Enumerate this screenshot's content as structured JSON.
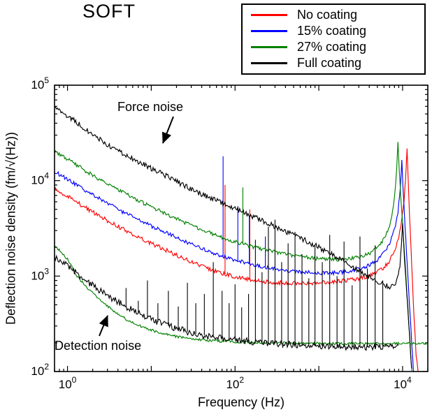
{
  "title": "SOFT",
  "annotations": {
    "force": "Force noise",
    "detection": "Detection noise"
  },
  "legend": {
    "position": "top-right",
    "items": [
      {
        "label": "No coating",
        "color": "#ff0000"
      },
      {
        "label": "15% coating",
        "color": "#0000ff"
      },
      {
        "label": "27% coating",
        "color": "#008000"
      },
      {
        "label": "Full coating",
        "color": "#000000"
      }
    ]
  },
  "chart_data": {
    "type": "line",
    "title": "SOFT",
    "xlabel": "Frequency (Hz)",
    "ylabel": "Deflection noise density (fm/√(Hz))",
    "xscale": "log",
    "yscale": "log",
    "xlim": [
      0.7,
      20000
    ],
    "ylim": [
      100,
      100000
    ],
    "grid": false,
    "x_tick_labels": [
      {
        "value": 1,
        "base": "10",
        "exp": "0"
      },
      {
        "value": 100,
        "base": "10",
        "exp": "2"
      },
      {
        "value": 10000,
        "base": "10",
        "exp": "4"
      }
    ],
    "y_tick_labels": [
      {
        "value": 100,
        "base": "10",
        "exp": "2"
      },
      {
        "value": 1000,
        "base": "10",
        "exp": "3"
      },
      {
        "value": 10000,
        "base": "10",
        "exp": "4"
      },
      {
        "value": 100000,
        "base": "10",
        "exp": "5"
      }
    ],
    "series": [
      {
        "name": "No coating",
        "color": "#ff0000",
        "noise": 0.022,
        "points": [
          [
            0.7,
            8200
          ],
          [
            1,
            6800
          ],
          [
            2,
            4700
          ],
          [
            3,
            3800
          ],
          [
            5,
            3000
          ],
          [
            7,
            2550
          ],
          [
            10,
            2200
          ],
          [
            15,
            1870
          ],
          [
            20,
            1660
          ],
          [
            30,
            1410
          ],
          [
            50,
            1180
          ],
          [
            70,
            1070
          ],
          [
            100,
            985
          ],
          [
            150,
            920
          ],
          [
            200,
            885
          ],
          [
            300,
            860
          ],
          [
            500,
            845
          ],
          [
            700,
            845
          ],
          [
            1000,
            855
          ],
          [
            1500,
            870
          ],
          [
            2000,
            895
          ],
          [
            3000,
            945
          ],
          [
            4000,
            1010
          ],
          [
            5000,
            1100
          ],
          [
            6000,
            1230
          ],
          [
            7000,
            1450
          ],
          [
            8000,
            1850
          ],
          [
            9000,
            2600
          ],
          [
            9800,
            3900
          ],
          [
            10400,
            6000
          ],
          [
            10900,
            11000
          ],
          [
            11300,
            21000
          ],
          [
            11700,
            10000
          ],
          [
            12100,
            4500
          ],
          [
            12600,
            2000
          ],
          [
            13100,
            900
          ],
          [
            13700,
            380
          ],
          [
            14500,
            150
          ],
          [
            15300,
            100
          ]
        ],
        "spikes": [
          [
            76,
            9000
          ],
          [
            150,
            5000
          ]
        ]
      },
      {
        "name": "15% coating",
        "color": "#0000ff",
        "noise": 0.02,
        "points": [
          [
            0.7,
            12500
          ],
          [
            1,
            10300
          ],
          [
            2,
            7100
          ],
          [
            3,
            5800
          ],
          [
            5,
            4500
          ],
          [
            7,
            3900
          ],
          [
            10,
            3350
          ],
          [
            15,
            2850
          ],
          [
            20,
            2550
          ],
          [
            30,
            2150
          ],
          [
            50,
            1800
          ],
          [
            70,
            1620
          ],
          [
            100,
            1480
          ],
          [
            150,
            1350
          ],
          [
            200,
            1270
          ],
          [
            300,
            1190
          ],
          [
            500,
            1120
          ],
          [
            700,
            1090
          ],
          [
            1000,
            1080
          ],
          [
            1500,
            1080
          ],
          [
            2000,
            1100
          ],
          [
            3000,
            1180
          ],
          [
            4000,
            1300
          ],
          [
            5000,
            1480
          ],
          [
            6000,
            1750
          ],
          [
            7000,
            2200
          ],
          [
            8000,
            3100
          ],
          [
            8800,
            4700
          ],
          [
            9400,
            8500
          ],
          [
            9800,
            17000
          ],
          [
            10100,
            9000
          ],
          [
            10700,
            3300
          ],
          [
            11400,
            1300
          ],
          [
            12100,
            480
          ],
          [
            12900,
            190
          ],
          [
            13500,
            100
          ]
        ],
        "spikes": [
          [
            72,
            18000
          ],
          [
            108,
            5400
          ],
          [
            148,
            4200
          ],
          [
            230,
            2600
          ]
        ]
      },
      {
        "name": "27% coating",
        "color": "#008000",
        "noise": 0.02,
        "points": [
          [
            0.7,
            20500
          ],
          [
            1,
            16800
          ],
          [
            2,
            11300
          ],
          [
            3,
            9200
          ],
          [
            5,
            7200
          ],
          [
            7,
            6200
          ],
          [
            10,
            5300
          ],
          [
            15,
            4500
          ],
          [
            20,
            4000
          ],
          [
            30,
            3400
          ],
          [
            50,
            2850
          ],
          [
            70,
            2550
          ],
          [
            100,
            2300
          ],
          [
            150,
            2060
          ],
          [
            200,
            1930
          ],
          [
            300,
            1780
          ],
          [
            500,
            1640
          ],
          [
            700,
            1570
          ],
          [
            1000,
            1520
          ],
          [
            1500,
            1490
          ],
          [
            2000,
            1500
          ],
          [
            3000,
            1570
          ],
          [
            4000,
            1720
          ],
          [
            5000,
            1980
          ],
          [
            6000,
            2450
          ],
          [
            6800,
            3100
          ],
          [
            7400,
            4200
          ],
          [
            8000,
            6800
          ],
          [
            8500,
            13000
          ],
          [
            8800,
            26000
          ],
          [
            9100,
            14000
          ],
          [
            9600,
            6000
          ],
          [
            10200,
            2600
          ],
          [
            10900,
            1050
          ],
          [
            11600,
            420
          ],
          [
            12300,
            180
          ],
          [
            12900,
            100
          ]
        ],
        "spikes": [
          [
            124,
            8500
          ]
        ]
      },
      {
        "name": "Full coating",
        "color": "#000000",
        "noise": 0.028,
        "points": [
          [
            0.7,
            62000
          ],
          [
            1,
            48000
          ],
          [
            2,
            30000
          ],
          [
            3,
            24000
          ],
          [
            5,
            18500
          ],
          [
            7,
            15800
          ],
          [
            10,
            13500
          ],
          [
            15,
            11200
          ],
          [
            20,
            9800
          ],
          [
            30,
            8100
          ],
          [
            50,
            6600
          ],
          [
            70,
            5800
          ],
          [
            100,
            5100
          ],
          [
            150,
            4300
          ],
          [
            200,
            3900
          ],
          [
            300,
            3300
          ],
          [
            500,
            2700
          ],
          [
            700,
            2350
          ],
          [
            1000,
            2000
          ],
          [
            1500,
            1650
          ],
          [
            2000,
            1430
          ],
          [
            3000,
            1150
          ],
          [
            4000,
            980
          ],
          [
            5000,
            870
          ],
          [
            6000,
            800
          ],
          [
            7000,
            780
          ],
          [
            8000,
            820
          ],
          [
            8700,
            950
          ],
          [
            9300,
            1300
          ],
          [
            9700,
            2200
          ],
          [
            10000,
            3500
          ],
          [
            10300,
            2200
          ],
          [
            10800,
            1100
          ],
          [
            11500,
            500
          ],
          [
            12200,
            220
          ],
          [
            12800,
            110
          ]
        ],
        "spikes": []
      },
      {
        "name": "Detection noise (27% coating)",
        "color": "#008000",
        "noise": 0.013,
        "points": [
          [
            0.7,
            2100
          ],
          [
            1,
            1500
          ],
          [
            1.3,
            1000
          ],
          [
            1.7,
            760
          ],
          [
            2.2,
            610
          ],
          [
            3,
            480
          ],
          [
            4,
            400
          ],
          [
            5,
            355
          ],
          [
            7,
            305
          ],
          [
            10,
            272
          ],
          [
            15,
            246
          ],
          [
            20,
            233
          ],
          [
            30,
            221
          ],
          [
            50,
            211
          ],
          [
            100,
            205
          ],
          [
            200,
            201
          ],
          [
            500,
            198
          ],
          [
            1000,
            197
          ],
          [
            2000,
            196
          ],
          [
            5000,
            196
          ],
          [
            10000,
            197
          ],
          [
            16000,
            198
          ],
          [
            20000,
            198
          ]
        ],
        "spikes": []
      },
      {
        "name": "Detection noise (full coating)",
        "color": "#000000",
        "noise": 0.035,
        "points": [
          [
            0.7,
            1550
          ],
          [
            1,
            1290
          ],
          [
            1.3,
            1060
          ],
          [
            1.7,
            890
          ],
          [
            2.2,
            750
          ],
          [
            3,
            625
          ],
          [
            4,
            535
          ],
          [
            5,
            475
          ],
          [
            7,
            405
          ],
          [
            10,
            352
          ],
          [
            15,
            307
          ],
          [
            20,
            282
          ],
          [
            30,
            254
          ],
          [
            50,
            232
          ],
          [
            100,
            216
          ],
          [
            200,
            201
          ],
          [
            500,
            191
          ],
          [
            1000,
            184
          ],
          [
            2000,
            181
          ],
          [
            3000,
            180
          ],
          [
            4500,
            181
          ],
          [
            6500,
            184
          ],
          [
            9000,
            188
          ]
        ],
        "spikes": [
          [
            5,
            750
          ],
          [
            7,
            550
          ],
          [
            9,
            900
          ],
          [
            12,
            520
          ],
          [
            16,
            700
          ],
          [
            21,
            480
          ],
          [
            27,
            850
          ],
          [
            34,
            520
          ],
          [
            43,
            650
          ],
          [
            55,
            1400
          ],
          [
            70,
            700
          ],
          [
            85,
            520
          ],
          [
            100,
            820
          ],
          [
            120,
            470
          ],
          [
            145,
            650
          ],
          [
            175,
            2400
          ],
          [
            210,
            1100
          ],
          [
            250,
            3300
          ],
          [
            300,
            3900
          ],
          [
            360,
            1400
          ],
          [
            430,
            2200
          ],
          [
            520,
            2900
          ],
          [
            630,
            1700
          ],
          [
            760,
            950
          ],
          [
            900,
            2100
          ],
          [
            1100,
            1400
          ],
          [
            1350,
            2700
          ],
          [
            1650,
            1000
          ],
          [
            2000,
            2300
          ],
          [
            2500,
            800
          ],
          [
            3100,
            2600
          ],
          [
            3800,
            1200
          ],
          [
            4700,
            2100
          ],
          [
            5800,
            900
          ]
        ]
      }
    ]
  }
}
